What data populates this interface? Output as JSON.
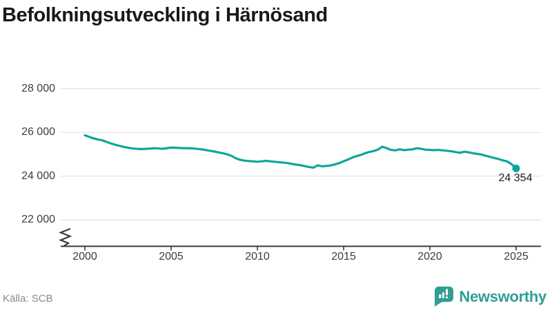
{
  "title": "Befolkningsutveckling i Härnösand",
  "source": "Källa: SCB",
  "brand": {
    "name": "Newsworthy",
    "color": "#319e93",
    "icon": "bar-chart-speech-bubble-icon"
  },
  "chart_data": {
    "type": "line",
    "title": "Befolkningsutveckling i Härnösand",
    "xlabel": "",
    "ylabel": "",
    "x_start": 2000,
    "x_step": 0.25,
    "x_ticks": [
      2000,
      2005,
      2010,
      2015,
      2020,
      2025
    ],
    "y_tick_labels": [
      "28 000",
      "26 000",
      "24 000",
      "22 000"
    ],
    "y_tick_values": [
      28000,
      26000,
      24000,
      22000
    ],
    "axis_break": true,
    "grid": "horizontal",
    "line_color": "#0da69a",
    "grid_color": "#dcdcdc",
    "axis_color": "#3b3b3b",
    "end_label": "24 354",
    "end_value": 24354,
    "values": [
      25870,
      25800,
      25730,
      25680,
      25640,
      25570,
      25500,
      25440,
      25390,
      25340,
      25300,
      25270,
      25250,
      25240,
      25250,
      25260,
      25280,
      25270,
      25250,
      25280,
      25310,
      25300,
      25290,
      25280,
      25280,
      25270,
      25250,
      25230,
      25200,
      25160,
      25130,
      25090,
      25050,
      25000,
      24930,
      24820,
      24750,
      24710,
      24690,
      24680,
      24660,
      24680,
      24700,
      24680,
      24660,
      24640,
      24620,
      24600,
      24560,
      24530,
      24500,
      24460,
      24420,
      24390,
      24500,
      24450,
      24470,
      24490,
      24540,
      24600,
      24680,
      24760,
      24850,
      24920,
      24970,
      25050,
      25110,
      25150,
      25220,
      25350,
      25280,
      25200,
      25180,
      25230,
      25190,
      25210,
      25230,
      25280,
      25250,
      25210,
      25200,
      25190,
      25200,
      25180,
      25160,
      25140,
      25100,
      25070,
      25120,
      25090,
      25050,
      25020,
      24990,
      24930,
      24880,
      24830,
      24780,
      24720,
      24670,
      24540,
      24354
    ]
  }
}
